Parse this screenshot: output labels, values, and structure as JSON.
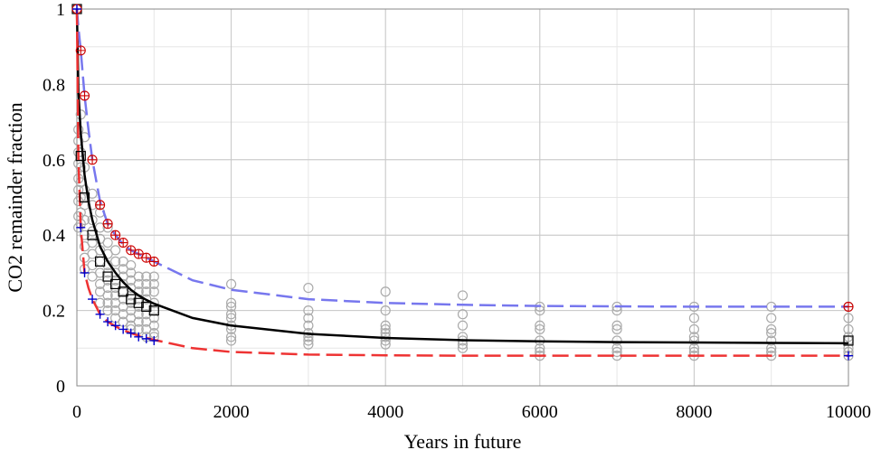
{
  "chart_data": {
    "type": "scatter",
    "title": "",
    "xlabel": "Years in future",
    "ylabel": "CO2 remainder fraction",
    "xlim": [
      0,
      10000
    ],
    "ylim": [
      0,
      1
    ],
    "grid": true,
    "x_ticks": [
      0,
      2000,
      4000,
      6000,
      8000,
      10000
    ],
    "y_ticks": [
      0,
      0.2,
      0.4,
      0.6,
      0.8,
      1
    ],
    "x_tick_labels": [
      "0",
      "2000",
      "4000",
      "6000",
      "8000",
      "10000"
    ],
    "y_tick_labels": [
      "0",
      "0.2",
      "0.4",
      "0.6",
      "0.8",
      "1"
    ],
    "colors": {
      "mean_line": "#000000",
      "upper_line": "#7777ee",
      "lower_line": "#ee3333",
      "scatter_points": "#aaaaaa",
      "upper_markers": "#cc0000",
      "lower_markers": "#0000cc",
      "grid": "#c8c8c8"
    },
    "series": [
      {
        "style": "solid",
        "x": [
          0,
          20,
          50,
          100,
          150,
          200,
          300,
          400,
          500,
          600,
          700,
          800,
          900,
          1000,
          1500,
          2000,
          3000,
          4000,
          5000,
          6000,
          7000,
          8000,
          9000,
          10000
        ],
        "values": [
          1.0,
          0.78,
          0.67,
          0.56,
          0.49,
          0.44,
          0.37,
          0.33,
          0.3,
          0.275,
          0.255,
          0.24,
          0.228,
          0.218,
          0.18,
          0.16,
          0.138,
          0.127,
          0.121,
          0.118,
          0.116,
          0.115,
          0.114,
          0.113
        ]
      },
      {
        "style": "dashed",
        "x": [
          0,
          20,
          50,
          100,
          150,
          200,
          300,
          400,
          500,
          600,
          700,
          800,
          900,
          1000,
          1500,
          2000,
          3000,
          4000,
          5000,
          6000,
          7000,
          8000,
          9000,
          10000
        ],
        "values": [
          1.0,
          0.95,
          0.89,
          0.77,
          0.68,
          0.6,
          0.49,
          0.43,
          0.4,
          0.375,
          0.36,
          0.35,
          0.34,
          0.33,
          0.28,
          0.255,
          0.23,
          0.22,
          0.215,
          0.212,
          0.211,
          0.21,
          0.21,
          0.21
        ]
      },
      {
        "style": "dashed",
        "x": [
          0,
          20,
          50,
          100,
          150,
          200,
          300,
          400,
          500,
          600,
          700,
          800,
          900,
          1000,
          1500,
          2000,
          3000,
          4000,
          5000,
          6000,
          7000,
          8000,
          9000,
          10000
        ],
        "values": [
          1.0,
          0.6,
          0.42,
          0.3,
          0.26,
          0.23,
          0.19,
          0.17,
          0.158,
          0.148,
          0.14,
          0.133,
          0.127,
          0.122,
          0.1,
          0.09,
          0.083,
          0.081,
          0.08,
          0.08,
          0.08,
          0.08,
          0.08,
          0.08
        ]
      }
    ],
    "scatter": [
      {
        "x": 0,
        "values": [
          1.0
        ]
      },
      {
        "x": 20,
        "values": [
          0.68,
          0.65,
          0.62,
          0.59,
          0.55,
          0.52,
          0.49,
          0.45,
          0.42
        ]
      },
      {
        "x": 50,
        "values": [
          0.72,
          0.62,
          0.58,
          0.54,
          0.5,
          0.46,
          0.43
        ]
      },
      {
        "x": 100,
        "values": [
          0.66,
          0.58,
          0.52,
          0.48,
          0.44,
          0.4,
          0.37,
          0.34,
          0.31
        ]
      },
      {
        "x": 200,
        "values": [
          0.51,
          0.48,
          0.44,
          0.41,
          0.38,
          0.35,
          0.32,
          0.29
        ]
      },
      {
        "x": 300,
        "values": [
          0.46,
          0.42,
          0.39,
          0.36,
          0.33,
          0.3,
          0.27,
          0.25,
          0.22
        ]
      },
      {
        "x": 400,
        "values": [
          0.42,
          0.38,
          0.35,
          0.32,
          0.3,
          0.28,
          0.26,
          0.24,
          0.22,
          0.2
        ]
      },
      {
        "x": 500,
        "values": [
          0.36,
          0.33,
          0.3,
          0.28,
          0.26,
          0.24,
          0.22,
          0.2,
          0.18
        ]
      },
      {
        "x": 600,
        "values": [
          0.33,
          0.31,
          0.29,
          0.27,
          0.25,
          0.23,
          0.21,
          0.19,
          0.17
        ]
      },
      {
        "x": 700,
        "values": [
          0.32,
          0.3,
          0.28,
          0.26,
          0.24,
          0.22,
          0.2,
          0.18,
          0.16,
          0.15
        ]
      },
      {
        "x": 800,
        "values": [
          0.29,
          0.27,
          0.25,
          0.23,
          0.21,
          0.19,
          0.17,
          0.15
        ]
      },
      {
        "x": 900,
        "values": [
          0.29,
          0.27,
          0.25,
          0.23,
          0.21,
          0.19,
          0.17,
          0.15,
          0.13
        ]
      },
      {
        "x": 1000,
        "values": [
          0.29,
          0.27,
          0.25,
          0.22,
          0.2,
          0.18,
          0.16,
          0.14,
          0.13
        ]
      },
      {
        "x": 2000,
        "values": [
          0.27,
          0.22,
          0.21,
          0.19,
          0.18,
          0.16,
          0.15,
          0.13,
          0.12
        ]
      },
      {
        "x": 3000,
        "values": [
          0.26,
          0.2,
          0.18,
          0.16,
          0.14,
          0.13,
          0.12,
          0.11
        ]
      },
      {
        "x": 4000,
        "values": [
          0.25,
          0.2,
          0.16,
          0.15,
          0.14,
          0.13,
          0.12,
          0.11
        ]
      },
      {
        "x": 5000,
        "values": [
          0.24,
          0.19,
          0.16,
          0.13,
          0.12,
          0.11,
          0.1
        ]
      },
      {
        "x": 6000,
        "values": [
          0.21,
          0.2,
          0.16,
          0.15,
          0.12,
          0.1,
          0.09,
          0.08
        ]
      },
      {
        "x": 7000,
        "values": [
          0.21,
          0.2,
          0.16,
          0.15,
          0.12,
          0.1,
          0.09,
          0.08
        ]
      },
      {
        "x": 8000,
        "values": [
          0.21,
          0.18,
          0.15,
          0.13,
          0.12,
          0.1,
          0.09,
          0.08
        ]
      },
      {
        "x": 9000,
        "values": [
          0.21,
          0.18,
          0.15,
          0.14,
          0.12,
          0.1,
          0.09,
          0.08
        ]
      },
      {
        "x": 10000,
        "values": [
          0.21,
          0.18,
          0.15,
          0.13,
          0.12,
          0.1,
          0.09,
          0.08
        ]
      }
    ],
    "mean_markers": {
      "x": [
        0,
        50,
        100,
        200,
        300,
        400,
        500,
        600,
        700,
        800,
        900,
        1000,
        10000
      ],
      "values": [
        1.0,
        0.61,
        0.5,
        0.4,
        0.33,
        0.29,
        0.27,
        0.25,
        0.23,
        0.22,
        0.21,
        0.2,
        0.12
      ]
    },
    "upper_markers": {
      "x": [
        0,
        50,
        100,
        200,
        300,
        400,
        500,
        600,
        700,
        800,
        900,
        1000,
        10000
      ],
      "values": [
        1.0,
        0.89,
        0.77,
        0.6,
        0.48,
        0.43,
        0.4,
        0.38,
        0.36,
        0.35,
        0.34,
        0.33,
        0.21
      ]
    },
    "lower_markers": {
      "x": [
        0,
        50,
        100,
        200,
        300,
        400,
        500,
        600,
        700,
        800,
        900,
        1000,
        10000
      ],
      "values": [
        1.0,
        0.42,
        0.3,
        0.23,
        0.19,
        0.17,
        0.16,
        0.15,
        0.14,
        0.13,
        0.125,
        0.12,
        0.08
      ]
    }
  }
}
